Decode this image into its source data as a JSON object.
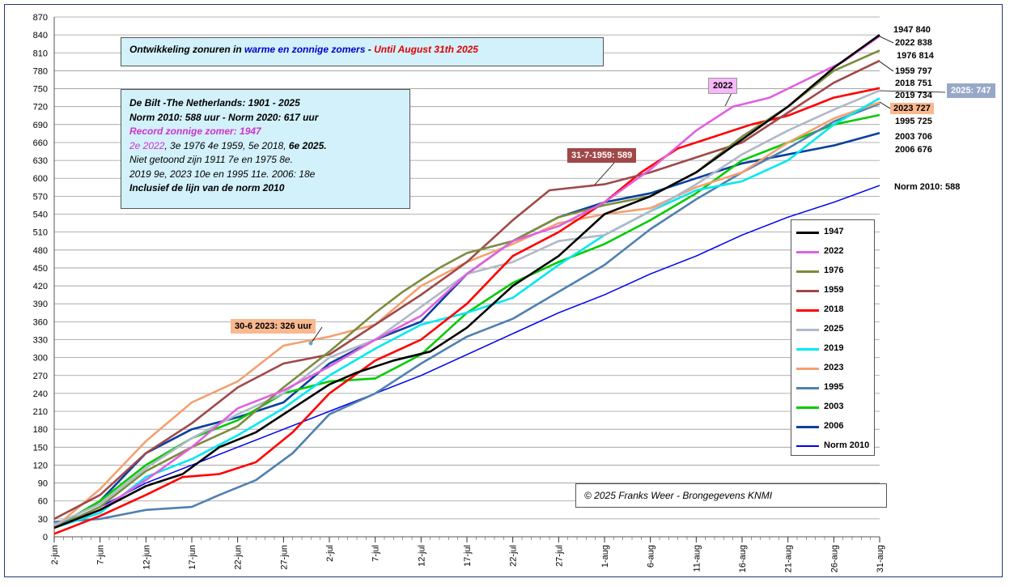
{
  "chart_data": {
    "type": "line",
    "ylim": [
      0,
      870
    ],
    "yticks": [
      0,
      30,
      60,
      90,
      120,
      150,
      180,
      210,
      240,
      270,
      300,
      330,
      360,
      390,
      420,
      450,
      480,
      510,
      540,
      570,
      600,
      630,
      660,
      690,
      720,
      750,
      780,
      810,
      840,
      870
    ],
    "x_tick_labels": [
      "2-jun",
      "7-jun",
      "12-jun",
      "17-jun",
      "22-jun",
      "27-jun",
      "2-jul",
      "7-jul",
      "12-jul",
      "17-jul",
      "22-jul",
      "27-jul",
      "1-aug",
      "6-aug",
      "11-aug",
      "16-aug",
      "21-aug",
      "26-aug",
      "31-aug"
    ],
    "x_tick_days": [
      0,
      5,
      10,
      15,
      20,
      25,
      30,
      35,
      40,
      45,
      50,
      55,
      60,
      65,
      70,
      75,
      80,
      85,
      90
    ],
    "grid": true,
    "legend_position": "right",
    "series": [
      {
        "name": "1947",
        "color": "#000000",
        "values": [
          [
            0,
            15
          ],
          [
            5,
            45
          ],
          [
            10,
            85
          ],
          [
            14,
            105
          ],
          [
            18,
            150
          ],
          [
            22,
            175
          ],
          [
            26,
            215
          ],
          [
            30,
            255
          ],
          [
            33,
            275
          ],
          [
            37,
            295
          ],
          [
            41,
            310
          ],
          [
            45,
            350
          ],
          [
            50,
            420
          ],
          [
            55,
            470
          ],
          [
            60,
            540
          ],
          [
            65,
            570
          ],
          [
            70,
            610
          ],
          [
            75,
            665
          ],
          [
            80,
            720
          ],
          [
            85,
            785
          ],
          [
            90,
            840
          ]
        ]
      },
      {
        "name": "2022",
        "color": "#e060e0",
        "values": [
          [
            0,
            15
          ],
          [
            5,
            45
          ],
          [
            10,
            95
          ],
          [
            15,
            150
          ],
          [
            20,
            215
          ],
          [
            25,
            245
          ],
          [
            30,
            285
          ],
          [
            35,
            330
          ],
          [
            40,
            370
          ],
          [
            45,
            440
          ],
          [
            50,
            495
          ],
          [
            55,
            520
          ],
          [
            60,
            560
          ],
          [
            65,
            615
          ],
          [
            70,
            680
          ],
          [
            74,
            720
          ],
          [
            78,
            735
          ],
          [
            82,
            765
          ],
          [
            86,
            795
          ],
          [
            90,
            838
          ]
        ]
      },
      {
        "name": "1976",
        "color": "#7c8c3e",
        "values": [
          [
            0,
            15
          ],
          [
            5,
            50
          ],
          [
            10,
            110
          ],
          [
            15,
            150
          ],
          [
            20,
            185
          ],
          [
            25,
            250
          ],
          [
            30,
            310
          ],
          [
            35,
            375
          ],
          [
            38,
            410
          ],
          [
            42,
            450
          ],
          [
            45,
            475
          ],
          [
            50,
            495
          ],
          [
            55,
            535
          ],
          [
            60,
            555
          ],
          [
            65,
            570
          ],
          [
            70,
            610
          ],
          [
            75,
            670
          ],
          [
            80,
            720
          ],
          [
            85,
            780
          ],
          [
            90,
            814
          ]
        ]
      },
      {
        "name": "1959",
        "color": "#a04848",
        "values": [
          [
            0,
            30
          ],
          [
            5,
            70
          ],
          [
            10,
            140
          ],
          [
            15,
            190
          ],
          [
            20,
            250
          ],
          [
            25,
            290
          ],
          [
            30,
            305
          ],
          [
            35,
            355
          ],
          [
            40,
            405
          ],
          [
            45,
            460
          ],
          [
            50,
            530
          ],
          [
            54,
            580
          ],
          [
            60,
            590
          ],
          [
            65,
            610
          ],
          [
            70,
            635
          ],
          [
            75,
            660
          ],
          [
            80,
            710
          ],
          [
            85,
            760
          ],
          [
            90,
            797
          ]
        ]
      },
      {
        "name": "2018",
        "color": "#ff0000",
        "values": [
          [
            0,
            5
          ],
          [
            5,
            35
          ],
          [
            10,
            70
          ],
          [
            14,
            100
          ],
          [
            18,
            105
          ],
          [
            22,
            125
          ],
          [
            26,
            175
          ],
          [
            30,
            240
          ],
          [
            35,
            295
          ],
          [
            40,
            330
          ],
          [
            45,
            390
          ],
          [
            50,
            470
          ],
          [
            55,
            510
          ],
          [
            60,
            560
          ],
          [
            64,
            610
          ],
          [
            68,
            650
          ],
          [
            72,
            670
          ],
          [
            76,
            690
          ],
          [
            80,
            705
          ],
          [
            85,
            735
          ],
          [
            90,
            751
          ]
        ]
      },
      {
        "name": "2025",
        "color": "#b0b8c8",
        "values": [
          [
            0,
            20
          ],
          [
            5,
            55
          ],
          [
            10,
            115
          ],
          [
            15,
            165
          ],
          [
            20,
            205
          ],
          [
            25,
            240
          ],
          [
            30,
            300
          ],
          [
            35,
            330
          ],
          [
            40,
            385
          ],
          [
            45,
            440
          ],
          [
            50,
            460
          ],
          [
            55,
            495
          ],
          [
            60,
            505
          ],
          [
            65,
            545
          ],
          [
            70,
            590
          ],
          [
            75,
            640
          ],
          [
            80,
            680
          ],
          [
            85,
            715
          ],
          [
            90,
            747
          ]
        ]
      },
      {
        "name": "2019",
        "color": "#00e8f0",
        "values": [
          [
            0,
            15
          ],
          [
            5,
            40
          ],
          [
            10,
            100
          ],
          [
            15,
            130
          ],
          [
            20,
            170
          ],
          [
            25,
            215
          ],
          [
            30,
            270
          ],
          [
            35,
            315
          ],
          [
            40,
            355
          ],
          [
            45,
            375
          ],
          [
            50,
            400
          ],
          [
            55,
            455
          ],
          [
            60,
            505
          ],
          [
            65,
            545
          ],
          [
            70,
            580
          ],
          [
            75,
            595
          ],
          [
            80,
            630
          ],
          [
            85,
            690
          ],
          [
            90,
            734
          ]
        ]
      },
      {
        "name": "2023",
        "color": "#f4a070",
        "values": [
          [
            0,
            15
          ],
          [
            5,
            80
          ],
          [
            10,
            160
          ],
          [
            15,
            225
          ],
          [
            20,
            260
          ],
          [
            25,
            320
          ],
          [
            27,
            326
          ],
          [
            30,
            335
          ],
          [
            35,
            355
          ],
          [
            40,
            420
          ],
          [
            45,
            460
          ],
          [
            50,
            490
          ],
          [
            55,
            525
          ],
          [
            60,
            540
          ],
          [
            65,
            550
          ],
          [
            70,
            585
          ],
          [
            75,
            610
          ],
          [
            80,
            660
          ],
          [
            85,
            700
          ],
          [
            90,
            727
          ]
        ]
      },
      {
        "name": "1995",
        "color": "#5080b0",
        "values": [
          [
            0,
            25
          ],
          [
            5,
            30
          ],
          [
            10,
            45
          ],
          [
            15,
            50
          ],
          [
            18,
            70
          ],
          [
            22,
            95
          ],
          [
            26,
            140
          ],
          [
            30,
            205
          ],
          [
            35,
            240
          ],
          [
            40,
            290
          ],
          [
            45,
            335
          ],
          [
            50,
            365
          ],
          [
            55,
            410
          ],
          [
            60,
            455
          ],
          [
            65,
            515
          ],
          [
            70,
            565
          ],
          [
            75,
            610
          ],
          [
            80,
            650
          ],
          [
            85,
            695
          ],
          [
            90,
            725
          ]
        ]
      },
      {
        "name": "2003",
        "color": "#00cc00",
        "values": [
          [
            0,
            15
          ],
          [
            5,
            60
          ],
          [
            10,
            120
          ],
          [
            15,
            165
          ],
          [
            20,
            195
          ],
          [
            25,
            240
          ],
          [
            30,
            260
          ],
          [
            35,
            265
          ],
          [
            40,
            305
          ],
          [
            45,
            375
          ],
          [
            50,
            425
          ],
          [
            55,
            460
          ],
          [
            60,
            490
          ],
          [
            65,
            530
          ],
          [
            70,
            575
          ],
          [
            75,
            630
          ],
          [
            80,
            660
          ],
          [
            85,
            690
          ],
          [
            90,
            706
          ]
        ]
      },
      {
        "name": "2006",
        "color": "#0840a0",
        "values": [
          [
            0,
            15
          ],
          [
            5,
            60
          ],
          [
            10,
            140
          ],
          [
            15,
            180
          ],
          [
            20,
            200
          ],
          [
            25,
            225
          ],
          [
            30,
            290
          ],
          [
            35,
            330
          ],
          [
            40,
            360
          ],
          [
            45,
            440
          ],
          [
            50,
            495
          ],
          [
            55,
            535
          ],
          [
            60,
            560
          ],
          [
            65,
            575
          ],
          [
            70,
            600
          ],
          [
            75,
            625
          ],
          [
            80,
            640
          ],
          [
            85,
            655
          ],
          [
            90,
            676
          ]
        ]
      },
      {
        "name": "Norm 2010",
        "color": "#0000ee",
        "values": [
          [
            0,
            15
          ],
          [
            5,
            50
          ],
          [
            10,
            90
          ],
          [
            15,
            120
          ],
          [
            20,
            150
          ],
          [
            25,
            180
          ],
          [
            30,
            210
          ],
          [
            35,
            240
          ],
          [
            40,
            270
          ],
          [
            45,
            305
          ],
          [
            50,
            340
          ],
          [
            55,
            375
          ],
          [
            60,
            405
          ],
          [
            65,
            440
          ],
          [
            70,
            470
          ],
          [
            75,
            505
          ],
          [
            80,
            535
          ],
          [
            85,
            560
          ],
          [
            90,
            588
          ]
        ]
      }
    ]
  },
  "title_box": {
    "part1": "Ontwikkeling zonuren  in ",
    "part2": "warme en zonnige zomers",
    "part3": "  -  ",
    "part4": "Until August 31th 2025"
  },
  "info_box": {
    "line1": "De Bilt -The Netherlands: 1901 - 2025",
    "line2": "Norm 2010: 588 uur - Norm 2020: 617 uur",
    "line3": "Record zonnige zomer:  1947",
    "line4a": "2e 2022",
    "line4b": ", 3e 1976 4e 1959, 5e 2018, ",
    "line4c": "6e 2025.",
    "line5": "Niet getoond zijn 1911 7e en 1975 8e.",
    "line6": "2019 9e, 2023 10e en 1995 11e. 2006: 18e",
    "line7": "Inclusief de lijn van de norm 2010"
  },
  "credit": "© 2025 Franks Weer  -  Brongegevens KNMI",
  "annotations": {
    "a2022": "2022",
    "a1959": "31-7-1959: 589",
    "a2023": "30-6 2023: 326 uur",
    "a2025": "2025: 747"
  },
  "end_labels": {
    "l1947": "1947  840",
    "l2022": "2022  838",
    "l1976": "1976  814",
    "l1959": "1959  797",
    "l2018": "2018  751",
    "l2019": "2019  734",
    "l2023": "2023  727",
    "l1995": "1995  725",
    "l2003": "2003  706",
    "l2006": "2006  676",
    "lnorm": "Norm 2010: 588"
  },
  "colors": {
    "title_blue": "#0000cc",
    "title_red": "#e00000",
    "record_magenta": "#cc33cc",
    "annot_2022_bg": "#f8b8f8",
    "annot_1959_bg": "#a04848",
    "annot_2023_bg": "#f8b890",
    "annot_2025_bg": "#98a8c8"
  }
}
